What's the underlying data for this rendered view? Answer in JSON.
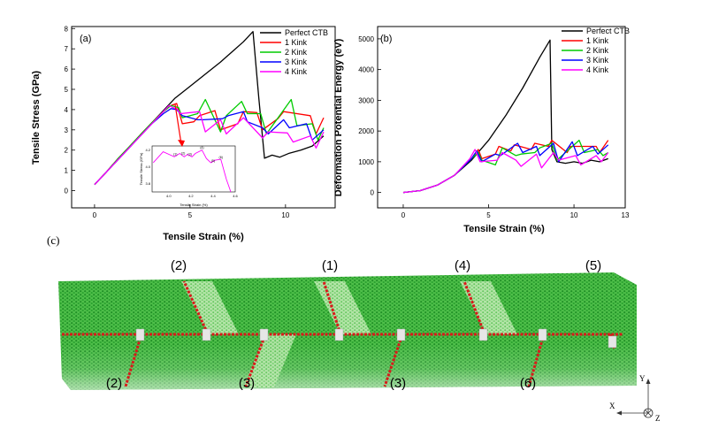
{
  "chart_data": [
    {
      "panel_label": "(a)",
      "type": "line",
      "xlabel": "Tensile Strain (%)",
      "ylabel": "Tensile Stress (GPa)",
      "xlim": [
        -1.2,
        12.6
      ],
      "ylim": [
        -0.85,
        8.1
      ],
      "xticks": [
        0,
        5,
        10
      ],
      "yticks": [
        0,
        1,
        2,
        3,
        4,
        5,
        6,
        7,
        8
      ],
      "legend_position": "top-right",
      "series": [
        {
          "name": "Perfect CTB",
          "color": "#000000",
          "x": [
            0,
            0.6,
            1.2,
            1.8,
            2.4,
            3.0,
            3.6,
            4.2,
            4.8,
            5.4,
            6.0,
            6.6,
            7.2,
            7.8,
            8.3,
            8.6,
            8.9,
            9.3,
            9.7,
            10.2,
            10.8,
            11.4,
            12.0
          ],
          "y": [
            0.3,
            0.9,
            1.5,
            2.1,
            2.75,
            3.35,
            3.95,
            4.55,
            5.0,
            5.45,
            5.9,
            6.35,
            6.85,
            7.35,
            7.85,
            4.6,
            1.6,
            1.75,
            1.65,
            1.85,
            2.0,
            2.2,
            2.7
          ]
        },
        {
          "name": "1 Kink",
          "color": "#ff0000",
          "x": [
            0,
            0.6,
            1.2,
            1.8,
            2.4,
            3.0,
            3.6,
            4.0,
            4.3,
            4.6,
            5.2,
            5.5,
            6.3,
            6.6,
            7.5,
            7.8,
            8.5,
            8.8,
            9.6,
            9.9,
            11.3,
            11.6,
            12.0
          ],
          "y": [
            0.3,
            0.9,
            1.55,
            2.15,
            2.75,
            3.35,
            3.9,
            4.2,
            4.3,
            3.3,
            3.4,
            3.7,
            3.95,
            3.0,
            3.3,
            3.9,
            3.85,
            3.0,
            3.55,
            3.9,
            3.7,
            2.8,
            3.6
          ]
        },
        {
          "name": "2 Kink",
          "color": "#00cc00",
          "x": [
            0,
            0.6,
            1.2,
            1.8,
            2.4,
            3.0,
            3.6,
            4.0,
            4.4,
            4.6,
            5.4,
            5.8,
            6.6,
            6.9,
            7.7,
            8.0,
            8.7,
            9.0,
            10.3,
            10.6,
            11.4,
            11.7,
            12.0
          ],
          "y": [
            0.3,
            0.9,
            1.55,
            2.15,
            2.75,
            3.35,
            3.9,
            4.2,
            4.1,
            3.6,
            3.8,
            4.5,
            2.9,
            3.7,
            4.4,
            3.8,
            3.8,
            2.8,
            4.5,
            3.2,
            3.3,
            2.5,
            3.1
          ]
        },
        {
          "name": "3 Kink",
          "color": "#0000ff",
          "x": [
            0,
            0.6,
            1.2,
            1.8,
            2.4,
            3.0,
            3.6,
            4.0,
            4.3,
            4.6,
            5.4,
            5.7,
            6.7,
            7.0,
            7.8,
            8.0,
            8.8,
            9.1,
            9.9,
            10.2,
            11.1,
            11.4,
            12.0
          ],
          "y": [
            0.3,
            0.9,
            1.5,
            2.1,
            2.7,
            3.3,
            3.8,
            4.05,
            4.0,
            3.7,
            3.5,
            3.5,
            3.55,
            3.7,
            3.9,
            3.4,
            3.1,
            2.8,
            3.5,
            3.1,
            3.3,
            2.5,
            3.0
          ]
        },
        {
          "name": "4 Kink",
          "color": "#ff00ff",
          "x": [
            0,
            0.6,
            1.2,
            1.8,
            2.4,
            3.0,
            3.6,
            3.9,
            4.1,
            4.3,
            4.5,
            5.5,
            5.8,
            6.6,
            6.9,
            7.8,
            8.1,
            8.8,
            9.1,
            10.1,
            10.4,
            11.3,
            11.6,
            12.0
          ],
          "y": [
            0.3,
            0.9,
            1.5,
            2.1,
            2.7,
            3.3,
            3.9,
            4.2,
            4.1,
            4.05,
            3.8,
            3.9,
            2.9,
            3.5,
            2.8,
            3.6,
            3.3,
            2.6,
            2.9,
            2.85,
            2.4,
            2.7,
            2.1,
            2.9
          ]
        }
      ],
      "inset": {
        "xlabel": "Tensile Strain (%)",
        "ylabel": "Tensile Stress (GPa)",
        "xlim": [
          3.85,
          4.6
        ],
        "ylim": [
          3.7,
          4.25
        ],
        "xticks": [
          4.0,
          4.2,
          4.4,
          4.6
        ],
        "yticks": [
          3.8,
          4.0,
          4.2
        ],
        "color": "#ff00ff",
        "x": [
          3.86,
          3.95,
          4.05,
          4.1,
          4.14,
          4.17,
          4.21,
          4.24,
          4.3,
          4.34,
          4.38,
          4.42,
          4.47,
          4.52,
          4.56
        ],
        "y": [
          4.05,
          4.18,
          4.12,
          4.16,
          4.12,
          4.15,
          4.12,
          4.16,
          4.2,
          4.1,
          4.05,
          4.08,
          4.09,
          3.85,
          3.7
        ],
        "labels": [
          "(1)",
          "(2)",
          "(3)",
          "(4)",
          "(5)",
          "(6)"
        ],
        "label_x": [
          4.06,
          4.13,
          4.19,
          4.3,
          4.4,
          4.47
        ],
        "label_y": [
          4.14,
          4.15,
          4.14,
          4.22,
          4.06,
          4.1
        ]
      }
    },
    {
      "panel_label": "(b)",
      "type": "line",
      "xlabel": "Tensile Strain (%)",
      "ylabel": "Deformation Potential Energy (eV)",
      "xlim": [
        -1.5,
        13
      ],
      "ylim": [
        -500,
        5400
      ],
      "xticks": [
        0,
        5,
        10
      ],
      "xtick_extra": 13,
      "yticks": [
        0,
        1000,
        2000,
        3000,
        4000,
        5000
      ],
      "legend_position": "top-right",
      "series": [
        {
          "name": "Perfect CTB",
          "color": "#000000",
          "x": [
            0,
            1,
            2,
            3,
            4,
            5,
            6,
            7,
            8,
            8.6,
            8.7,
            9.0,
            9.5,
            10,
            10.5,
            11,
            11.5,
            12
          ],
          "y": [
            0,
            60,
            240,
            560,
            1050,
            1700,
            2500,
            3400,
            4400,
            4960,
            1400,
            1000,
            950,
            1000,
            950,
            1050,
            1000,
            1100
          ]
        },
        {
          "name": "1 Kink",
          "color": "#ff0000",
          "x": [
            0,
            1,
            2,
            3,
            4,
            4.4,
            4.6,
            5.4,
            5.6,
            6.3,
            6.5,
            7.5,
            7.7,
            8.5,
            8.7,
            9.6,
            9.8,
            11.3,
            11.5,
            12
          ],
          "y": [
            0,
            60,
            240,
            560,
            1100,
            1400,
            1100,
            1250,
            1500,
            1350,
            1550,
            1400,
            1600,
            1500,
            1700,
            1300,
            1500,
            1500,
            1300,
            1700
          ]
        },
        {
          "name": "2 Kink",
          "color": "#00cc00",
          "x": [
            0,
            1,
            2,
            3,
            4,
            4.4,
            4.6,
            5.4,
            5.8,
            6.6,
            6.9,
            7.7,
            8.0,
            8.7,
            9.0,
            10.3,
            10.6,
            11.4,
            11.7,
            12
          ],
          "y": [
            0,
            60,
            240,
            560,
            1100,
            1300,
            1050,
            900,
            1450,
            1200,
            1250,
            1300,
            1450,
            1600,
            1050,
            1700,
            1300,
            1400,
            1200,
            1300
          ]
        },
        {
          "name": "3 Kink",
          "color": "#0000ff",
          "x": [
            0,
            1,
            2,
            3,
            4,
            4.3,
            4.6,
            5.4,
            5.7,
            6.7,
            7.0,
            7.8,
            8.0,
            8.8,
            9.1,
            9.9,
            10.2,
            11.1,
            11.4,
            12
          ],
          "y": [
            0,
            60,
            240,
            560,
            1100,
            1350,
            1000,
            1250,
            1200,
            1600,
            1300,
            1500,
            1200,
            1600,
            1000,
            1650,
            1200,
            1500,
            1250,
            1550
          ]
        },
        {
          "name": "4 Kink",
          "color": "#ff00ff",
          "x": [
            0,
            1,
            2,
            3,
            3.9,
            4.2,
            4.5,
            5.5,
            5.8,
            6.6,
            6.9,
            7.8,
            8.1,
            8.8,
            9.1,
            10.1,
            10.4,
            11.3,
            11.6,
            12
          ],
          "y": [
            0,
            60,
            240,
            560,
            1100,
            1400,
            1000,
            1050,
            1300,
            1050,
            850,
            1250,
            800,
            1300,
            1050,
            1200,
            900,
            1200,
            1000,
            1300
          ]
        }
      ]
    }
  ],
  "panel_c": {
    "panel_label": "(c)",
    "labels_top": [
      "(2)",
      "(1)",
      "(4)",
      "(5)"
    ],
    "labels_bottom": [
      "(2)",
      "(3)",
      "(3)",
      "(6)"
    ],
    "axes": {
      "y": "Y",
      "x": "X",
      "z": "Z"
    },
    "colors": {
      "atoms": "#3cb43c",
      "atoms_light": "#b9e8b0",
      "boundary": "#d81a1a",
      "kink": "#e0e0e0"
    }
  }
}
